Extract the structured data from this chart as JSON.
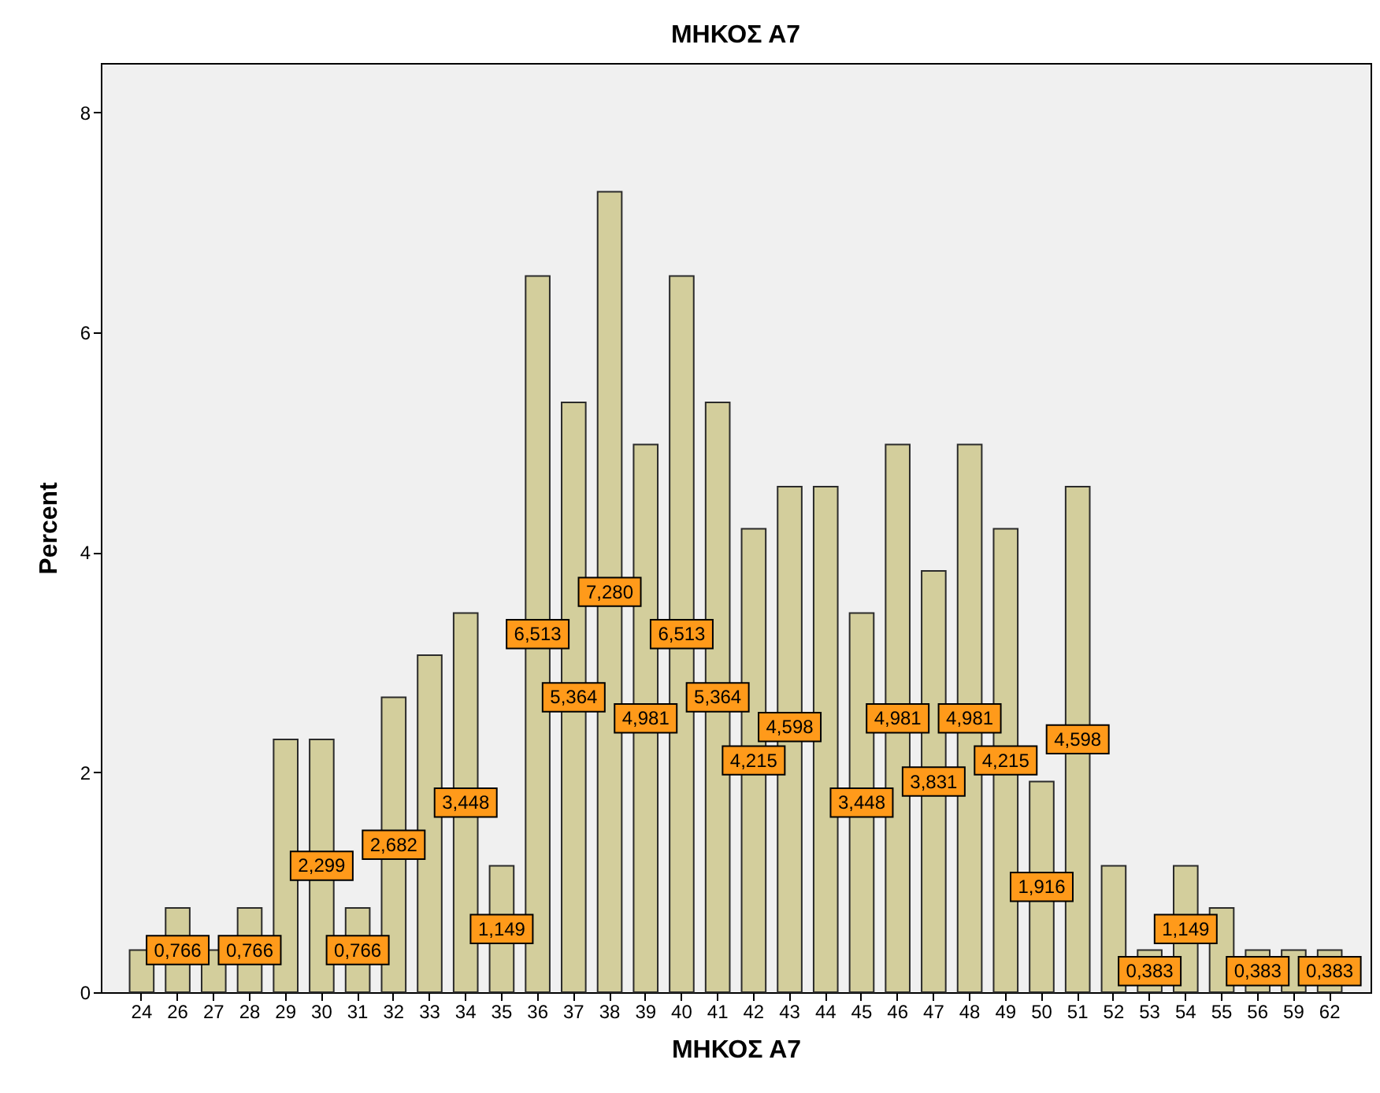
{
  "chart_data": {
    "type": "bar",
    "title": "ΜΗΚΟΣ Α7",
    "xlabel": "ΜΗΚΟΣ Α7",
    "ylabel": "Percent",
    "categories": [
      "24",
      "26",
      "27",
      "28",
      "29",
      "30",
      "31",
      "32",
      "33",
      "34",
      "35",
      "36",
      "37",
      "38",
      "39",
      "40",
      "41",
      "42",
      "43",
      "44",
      "45",
      "46",
      "47",
      "48",
      "49",
      "50",
      "51",
      "52",
      "53",
      "54",
      "55",
      "56",
      "59",
      "62"
    ],
    "values": [
      0.383,
      0.766,
      0.383,
      0.766,
      2.299,
      2.299,
      0.766,
      2.682,
      3.065,
      3.448,
      1.149,
      6.513,
      5.364,
      7.28,
      4.981,
      6.513,
      5.364,
      4.215,
      4.598,
      4.598,
      3.448,
      4.981,
      3.831,
      4.981,
      4.215,
      1.916,
      4.598,
      1.149,
      0.383,
      1.149,
      0.766,
      0.383,
      0.383,
      0.383
    ],
    "value_labels": [
      null,
      "0,766",
      null,
      "0,766",
      null,
      "2,299",
      "0,766",
      "2,682",
      null,
      "3,448",
      "1,149",
      "6,513",
      "5,364",
      "7,280",
      "4,981",
      "6,513",
      "5,364",
      "4,215",
      "4,598",
      null,
      "3,448",
      "4,981",
      "3,831",
      "4,981",
      "4,215",
      "1,916",
      "4,598",
      null,
      "0,383",
      "1,149",
      null,
      "0,383",
      null,
      "0,383"
    ],
    "color": "#d3ce9c",
    "ylim": [
      0,
      8.45
    ],
    "yticks": [
      0,
      2,
      4,
      6,
      8
    ],
    "grid": false
  }
}
